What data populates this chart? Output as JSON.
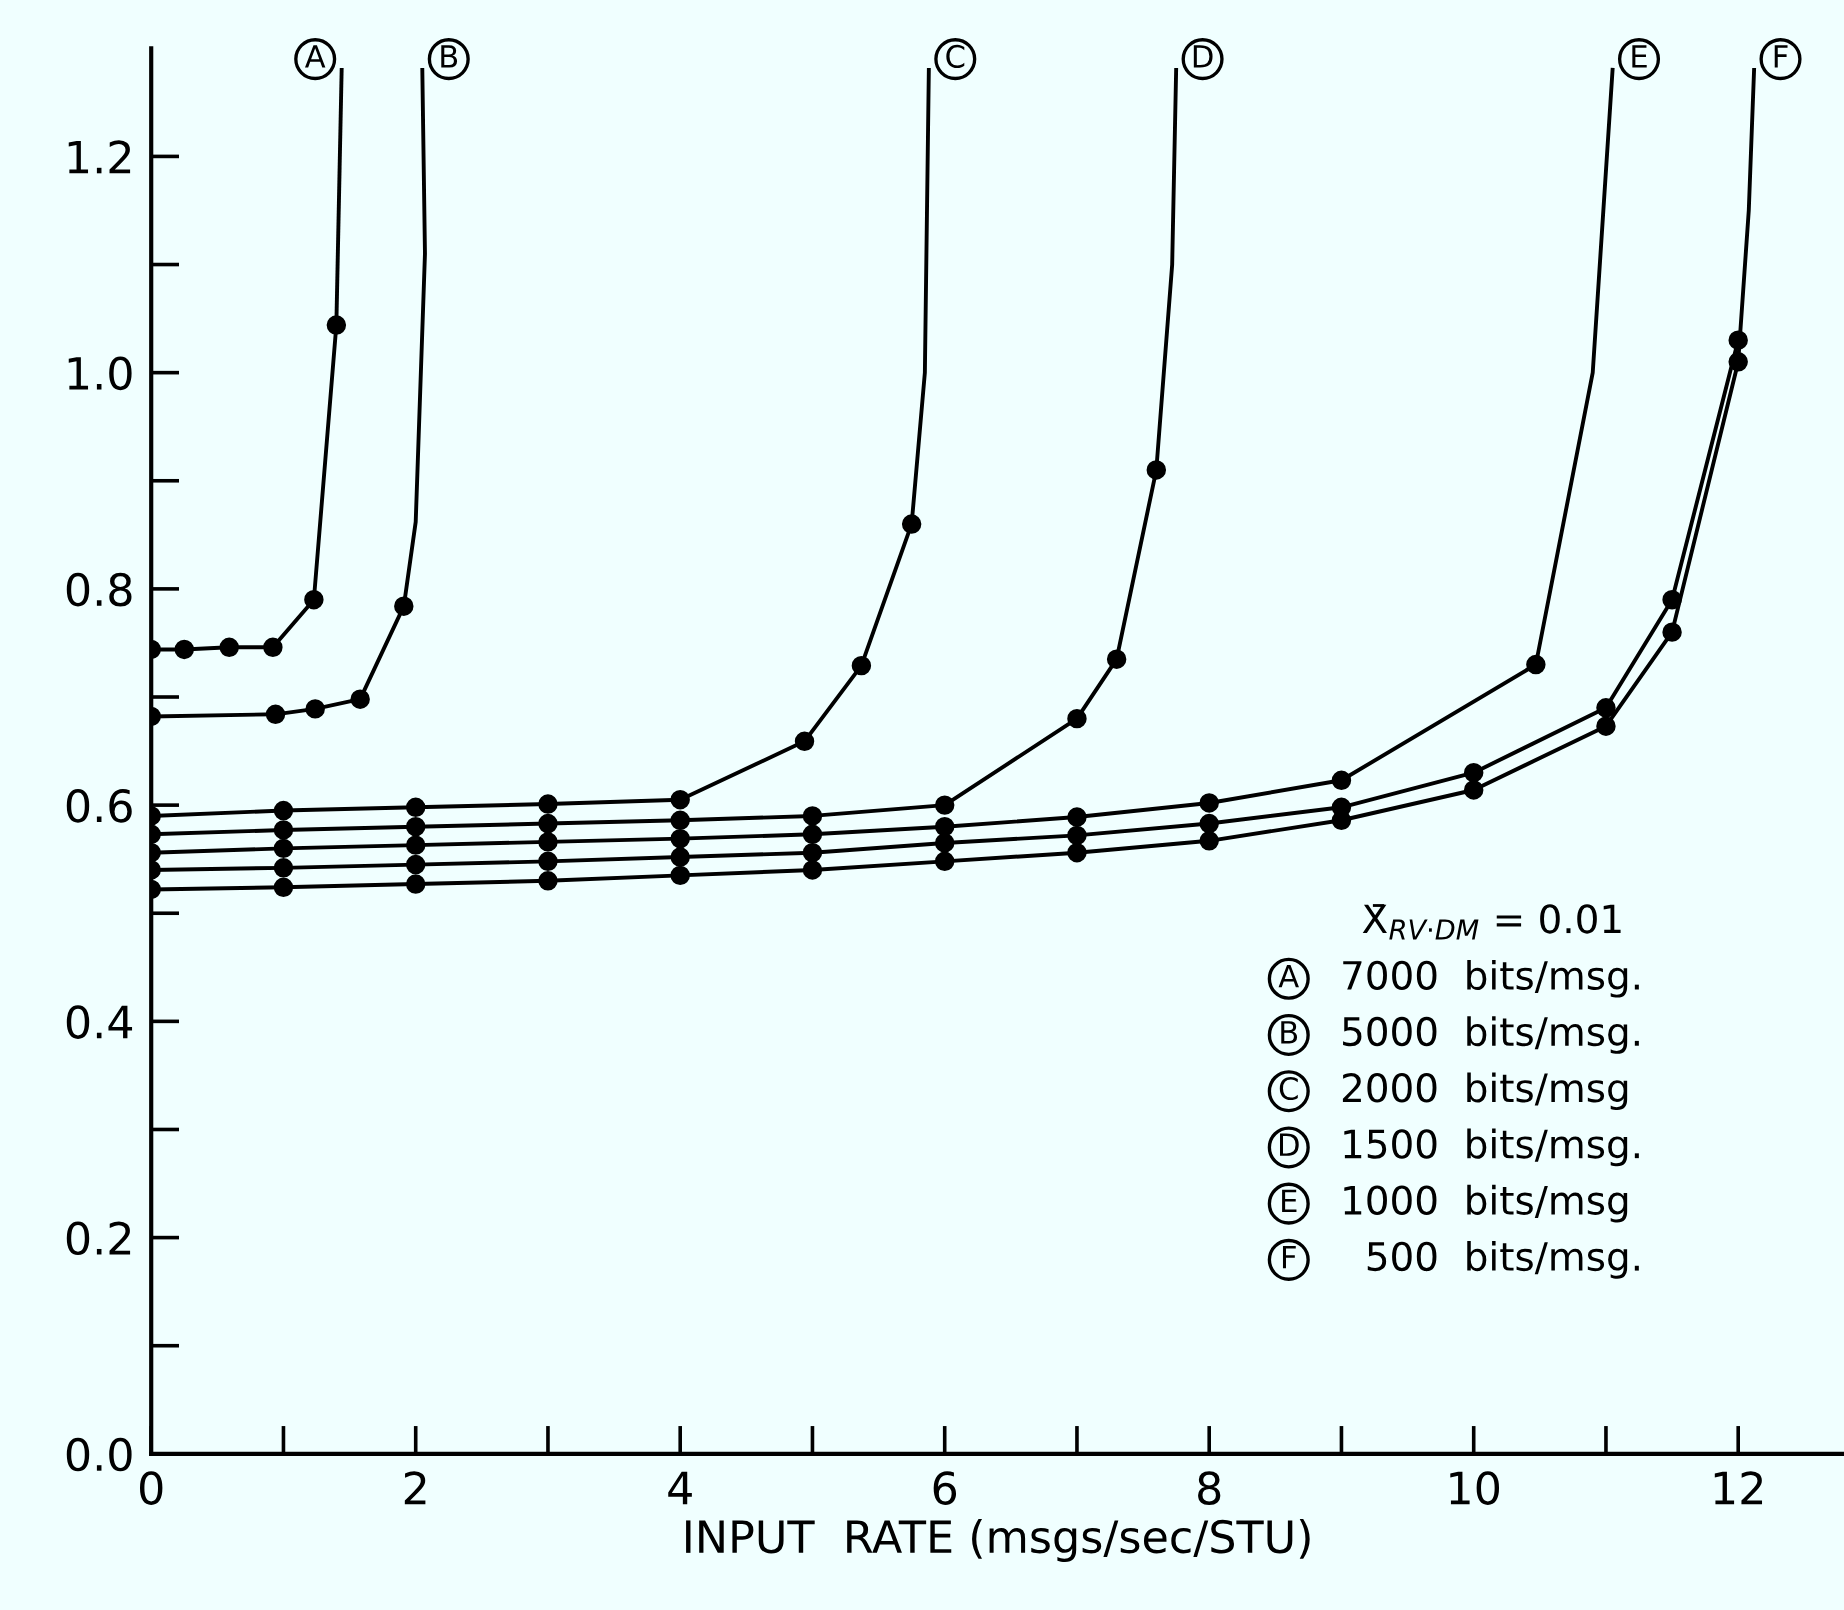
{
  "chart_data": {
    "type": "line",
    "xlabel": "INPUT  RATE (msgs/sec/STU)",
    "xlim": [
      0,
      12.8
    ],
    "ylim": [
      0,
      1.3
    ],
    "xticks": [
      0,
      {
        "value": 1,
        "label": null
      },
      2,
      {
        "value": 3,
        "label": null
      },
      4,
      {
        "value": 5,
        "label": null
      },
      6,
      {
        "value": 7,
        "label": null
      },
      8,
      {
        "value": 9,
        "label": null
      },
      10,
      {
        "value": 11,
        "label": null
      },
      12
    ],
    "yticks": [
      {
        "value": 0,
        "label": "0.0"
      },
      {
        "value": 0.1,
        "label": null
      },
      0.2,
      {
        "value": 0.3,
        "label": null
      },
      0.4,
      {
        "value": 0.5,
        "label": null
      },
      0.6,
      {
        "value": 0.7,
        "label": null
      },
      0.8,
      {
        "value": 0.9,
        "label": null
      },
      {
        "value": 1.0,
        "label": "1.0"
      },
      {
        "value": 1.1,
        "label": null
      },
      1.2
    ],
    "grid": false,
    "legend": false,
    "marker": "circle",
    "line_style": "solid",
    "series": [
      {
        "color": "#000000",
        "x": [
          0,
          0.25,
          0.59,
          0.92,
          1.23,
          1.4
        ],
        "values": [
          0.744,
          0.744,
          0.746,
          0.746,
          0.79,
          1.044
        ]
      },
      {
        "name": "A",
        "type": "line",
        "marker": "none",
        "color": "#000000",
        "x": [
          1.4,
          1.44
        ],
        "values": [
          1.044,
          1.28
        ]
      },
      {
        "color": "#000000",
        "x": [
          0,
          0.94,
          1.24,
          1.58,
          1.91
        ],
        "values": [
          0.682,
          0.684,
          0.689,
          0.698,
          0.784
        ]
      },
      {
        "name": "B",
        "type": "line",
        "marker": "none",
        "color": "#000000",
        "x": [
          1.91,
          2.0,
          2.07,
          2.05
        ],
        "values": [
          0.784,
          0.862,
          1.11,
          1.28
        ]
      },
      {
        "color": "#000000",
        "x": [
          0,
          1,
          2,
          3,
          4,
          4.94,
          5.37,
          5.75
        ],
        "values": [
          0.59,
          0.595,
          0.598,
          0.601,
          0.605,
          0.659,
          0.729,
          0.86
        ]
      },
      {
        "name": "C",
        "type": "line",
        "marker": "none",
        "color": "#000000",
        "x": [
          5.75,
          5.85,
          5.88
        ],
        "values": [
          0.86,
          1.0,
          1.28
        ]
      },
      {
        "color": "#000000",
        "x": [
          0,
          1,
          2,
          3,
          4,
          5,
          6,
          7,
          7.3,
          7.6
        ],
        "values": [
          0.573,
          0.577,
          0.58,
          0.583,
          0.586,
          0.59,
          0.6,
          0.68,
          0.735,
          0.91
        ]
      },
      {
        "name": "D",
        "type": "line",
        "marker": "none",
        "color": "#000000",
        "x": [
          7.6,
          7.72,
          7.75
        ],
        "values": [
          0.91,
          1.1,
          1.28
        ]
      },
      {
        "color": "#000000",
        "x": [
          0,
          1,
          2,
          3,
          4,
          5,
          6,
          7,
          8,
          9,
          10.47
        ],
        "values": [
          0.556,
          0.56,
          0.563,
          0.566,
          0.569,
          0.573,
          0.58,
          0.589,
          0.602,
          0.623,
          0.73
        ]
      },
      {
        "name": "E",
        "type": "line",
        "marker": "none",
        "color": "#000000",
        "x": [
          10.47,
          10.9,
          11.05
        ],
        "values": [
          0.73,
          1.0,
          1.28
        ]
      },
      {
        "color": "#000000",
        "x": [
          0,
          1,
          2,
          3,
          4,
          5,
          6,
          7,
          8,
          9,
          10,
          11,
          11.5,
          12
        ],
        "values": [
          0.54,
          0.542,
          0.545,
          0.548,
          0.552,
          0.556,
          0.565,
          0.572,
          0.583,
          0.598,
          0.63,
          0.69,
          0.79,
          1.03
        ]
      },
      {
        "color": "#000000",
        "x": [
          0,
          1,
          2,
          3,
          4,
          5,
          6,
          7,
          8,
          9,
          10,
          11,
          11.5,
          12
        ],
        "values": [
          0.522,
          0.524,
          0.527,
          0.53,
          0.535,
          0.54,
          0.548,
          0.556,
          0.567,
          0.586,
          0.614,
          0.673,
          0.76,
          1.01
        ]
      },
      {
        "name": "F",
        "type": "line",
        "marker": "none",
        "color": "#000000",
        "x": [
          12,
          12.08,
          12.12
        ],
        "values": [
          1.01,
          1.15,
          1.28
        ]
      }
    ],
    "annotations": [
      "X̄$_{RV·DM}$ = 0.01",
      "A  7000  bits/msg.",
      "B  5000  bits/msg.",
      "C  2000  bits/msg",
      "D  1500  bits/msg.",
      "E  1000  bits/msg",
      "F    500  bits/msg."
    ]
  }
}
